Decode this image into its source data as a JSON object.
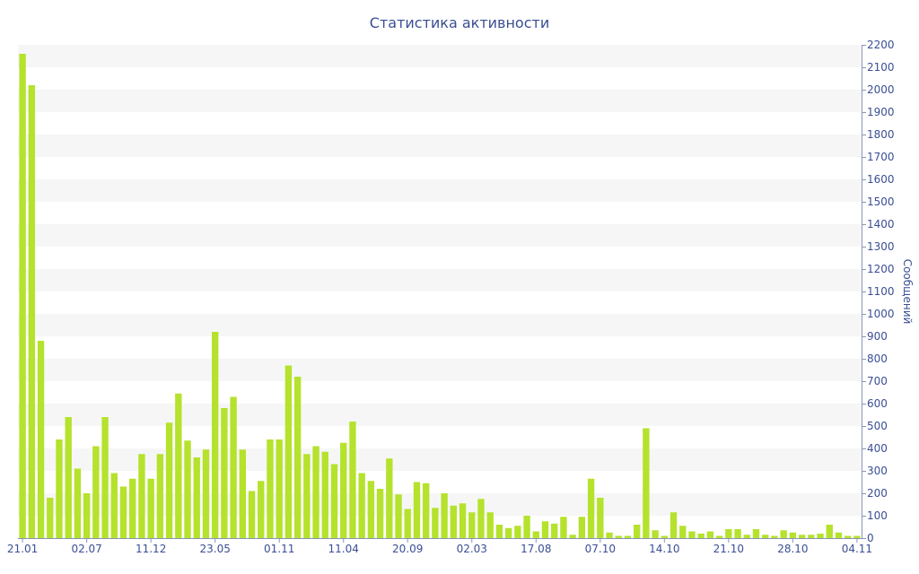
{
  "chart_data": {
    "type": "bar",
    "title": "Статистика активности",
    "ylabel": "Сообщений",
    "xlabel": "",
    "ylim": [
      0,
      2200
    ],
    "ytick_step": 100,
    "y_axis_side": "right",
    "grid": "alternating horizontal bands",
    "x_tick_labels": [
      {
        "label": "21.01",
        "index": 0
      },
      {
        "label": "02.07",
        "index": 7
      },
      {
        "label": "11.12",
        "index": 14
      },
      {
        "label": "23.05",
        "index": 21
      },
      {
        "label": "01.11",
        "index": 28
      },
      {
        "label": "11.04",
        "index": 35
      },
      {
        "label": "20.09",
        "index": 42
      },
      {
        "label": "02.03",
        "index": 49
      },
      {
        "label": "17.08",
        "index": 56
      },
      {
        "label": "07.10",
        "index": 63
      },
      {
        "label": "14.10",
        "index": 70
      },
      {
        "label": "21.10",
        "index": 77
      },
      {
        "label": "28.10",
        "index": 84
      },
      {
        "label": "04.11",
        "index": 91
      }
    ],
    "values": [
      2160,
      2020,
      880,
      180,
      440,
      540,
      310,
      200,
      410,
      540,
      290,
      230,
      265,
      375,
      265,
      375,
      515,
      645,
      435,
      360,
      395,
      920,
      580,
      630,
      395,
      210,
      255,
      440,
      440,
      770,
      720,
      375,
      410,
      385,
      330,
      425,
      520,
      290,
      255,
      220,
      355,
      195,
      130,
      250,
      245,
      135,
      200,
      145,
      155,
      115,
      175,
      115,
      60,
      45,
      55,
      100,
      30,
      75,
      65,
      95,
      15,
      95,
      265,
      180,
      25,
      10,
      10,
      60,
      490,
      35,
      10,
      115,
      55,
      30,
      20,
      30,
      10,
      40,
      40,
      15,
      40,
      15,
      10,
      35,
      25,
      15,
      15,
      20,
      60,
      25,
      10,
      10
    ],
    "colors": {
      "bar": "#b5e22c",
      "band": "#f6f6f6",
      "text": "#3a4e94",
      "axis": "#8a94b8"
    }
  }
}
